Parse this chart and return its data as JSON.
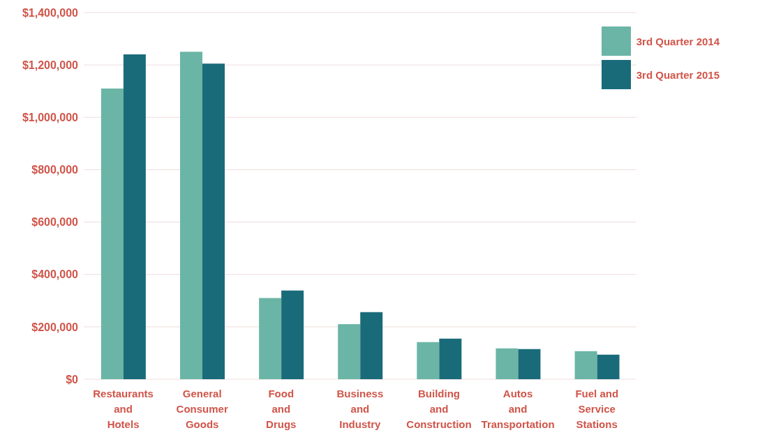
{
  "chart_data": {
    "type": "bar",
    "categories": [
      "Restaurants\nand\nHotels",
      "General\nConsumer\nGoods",
      "Food\nand\nDrugs",
      "Business\nand\nIndustry",
      "Building\nand\nConstruction",
      "Autos\nand\nTransportation",
      "Fuel and\nService\nStations"
    ],
    "series": [
      {
        "name": "3rd Quarter 2014",
        "color": "#6bb5a6",
        "values": [
          1110000,
          1250000,
          310000,
          210000,
          142000,
          118000,
          107000
        ]
      },
      {
        "name": "3rd Quarter 2015",
        "color": "#1a6b7a",
        "values": [
          1240000,
          1205000,
          339000,
          256000,
          155000,
          115000,
          94000
        ]
      }
    ],
    "ylim": [
      0,
      1400000
    ],
    "yticks": [
      {
        "value": 0,
        "label": "$0"
      },
      {
        "value": 200000,
        "label": "$200,000"
      },
      {
        "value": 400000,
        "label": "$400,000"
      },
      {
        "value": 600000,
        "label": "$600,000"
      },
      {
        "value": 800000,
        "label": "$800,000"
      },
      {
        "value": 1000000,
        "label": "$1,000,000"
      },
      {
        "value": 1200000,
        "label": "$1,200,000"
      },
      {
        "value": 1400000,
        "label": "$1,400,000"
      }
    ],
    "grid": "y",
    "legend": "top right"
  }
}
